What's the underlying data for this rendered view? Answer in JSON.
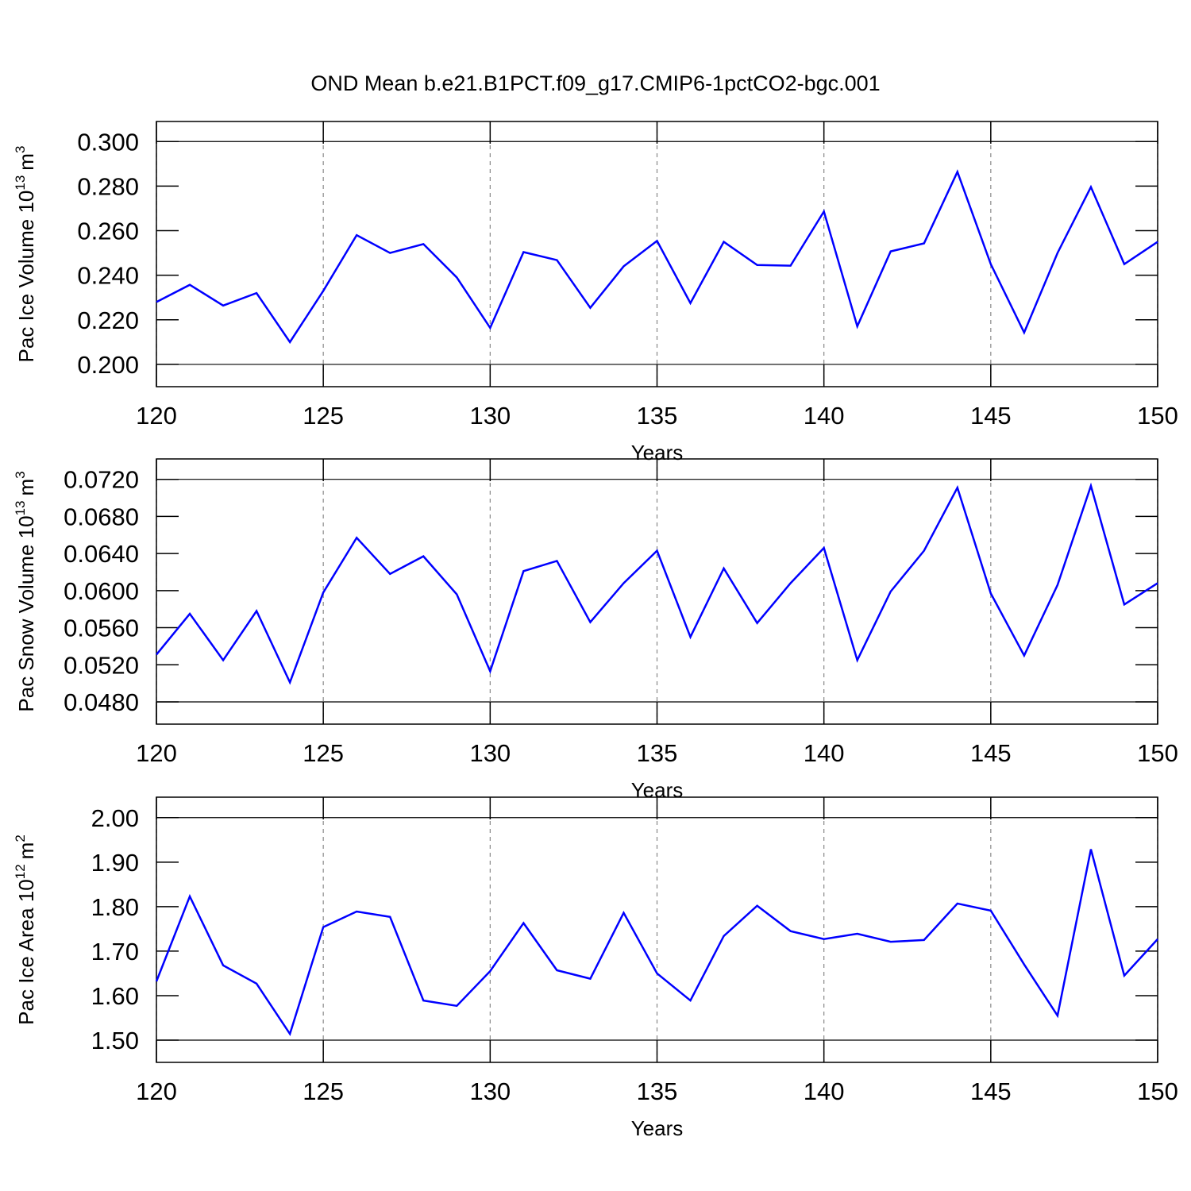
{
  "title": "OND Mean b.e21.B1PCT.f09_g17.CMIP6-1pctCO2-bgc.001",
  "chart_data": [
    {
      "type": "line",
      "xlabel": "Years",
      "ylabel": {
        "base": "Pac Ice Volume 10",
        "exp": "13",
        "unit": "m",
        "unit_exp": "3"
      },
      "x": [
        120,
        121,
        122,
        123,
        124,
        125,
        126,
        127,
        128,
        129,
        130,
        131,
        132,
        133,
        134,
        135,
        136,
        137,
        138,
        139,
        140,
        141,
        142,
        143,
        144,
        145,
        146,
        147,
        148,
        149,
        150
      ],
      "series": [
        {
          "color": "#0000ff",
          "values": [
            0.228,
            0.2357,
            0.2264,
            0.232,
            0.21,
            0.233,
            0.258,
            0.25,
            0.254,
            0.239,
            0.2164,
            0.2504,
            0.2468,
            0.2254,
            0.244,
            0.2554,
            0.2275,
            0.255,
            0.2446,
            0.2443,
            0.2686,
            0.2171,
            0.2507,
            0.2543,
            0.2864,
            0.245,
            0.2143,
            0.25,
            0.2796,
            0.245,
            0.255
          ]
        }
      ],
      "xlim": [
        120,
        150
      ],
      "xticks": [
        120,
        125,
        130,
        135,
        140,
        145,
        150
      ],
      "ylim": [
        0.19,
        0.309
      ],
      "yticks": [
        {
          "value": 0.2,
          "label": "0.200"
        },
        {
          "value": 0.22,
          "label": "0.220"
        },
        {
          "value": 0.24,
          "label": "0.240"
        },
        {
          "value": 0.26,
          "label": "0.260"
        },
        {
          "value": 0.28,
          "label": "0.280"
        },
        {
          "value": 0.3,
          "label": "0.300"
        }
      ],
      "xgrid": "dashed"
    },
    {
      "type": "line",
      "xlabel": "Years",
      "ylabel": {
        "base": "Pac Snow Volume 10",
        "exp": "13",
        "unit": "m",
        "unit_exp": "3"
      },
      "x": [
        120,
        121,
        122,
        123,
        124,
        125,
        126,
        127,
        128,
        129,
        130,
        131,
        132,
        133,
        134,
        135,
        136,
        137,
        138,
        139,
        140,
        141,
        142,
        143,
        144,
        145,
        146,
        147,
        148,
        149,
        150
      ],
      "series": [
        {
          "color": "#0000ff",
          "values": [
            0.0531,
            0.0575,
            0.0525,
            0.0578,
            0.0501,
            0.0598,
            0.0657,
            0.0618,
            0.0637,
            0.0596,
            0.0513,
            0.0621,
            0.0632,
            0.0566,
            0.0608,
            0.0643,
            0.055,
            0.0624,
            0.0565,
            0.0608,
            0.0646,
            0.0525,
            0.0599,
            0.0643,
            0.0711,
            0.0597,
            0.053,
            0.0606,
            0.0713,
            0.0585,
            0.0608
          ]
        }
      ],
      "xlim": [
        120,
        150
      ],
      "xticks": [
        120,
        125,
        130,
        135,
        140,
        145,
        150
      ],
      "ylim": [
        0.0456,
        0.0742
      ],
      "yticks": [
        {
          "value": 0.048,
          "label": "0.0480"
        },
        {
          "value": 0.052,
          "label": "0.0520"
        },
        {
          "value": 0.056,
          "label": "0.0560"
        },
        {
          "value": 0.06,
          "label": "0.0600"
        },
        {
          "value": 0.064,
          "label": "0.0640"
        },
        {
          "value": 0.068,
          "label": "0.0680"
        },
        {
          "value": 0.072,
          "label": "0.0720"
        }
      ],
      "xgrid": "dashed"
    },
    {
      "type": "line",
      "xlabel": "Years",
      "ylabel": {
        "base": "Pac Ice Area 10",
        "exp": "12",
        "unit": "m",
        "unit_exp": "2"
      },
      "x": [
        120,
        121,
        122,
        123,
        124,
        125,
        126,
        127,
        128,
        129,
        130,
        131,
        132,
        133,
        134,
        135,
        136,
        137,
        138,
        139,
        140,
        141,
        142,
        143,
        144,
        145,
        146,
        147,
        148,
        149,
        150
      ],
      "series": [
        {
          "color": "#0000ff",
          "values": [
            1.632,
            1.823,
            1.668,
            1.627,
            1.514,
            1.754,
            1.789,
            1.777,
            1.589,
            1.577,
            1.655,
            1.763,
            1.657,
            1.638,
            1.786,
            1.65,
            1.589,
            1.734,
            1.802,
            1.745,
            1.727,
            1.739,
            1.721,
            1.725,
            1.807,
            1.791,
            1.67,
            1.555,
            1.929,
            1.645,
            1.727
          ]
        }
      ],
      "xlim": [
        120,
        150
      ],
      "xticks": [
        120,
        125,
        130,
        135,
        140,
        145,
        150
      ],
      "ylim": [
        1.45,
        2.046
      ],
      "yticks": [
        {
          "value": 1.5,
          "label": "1.50"
        },
        {
          "value": 1.6,
          "label": "1.60"
        },
        {
          "value": 1.7,
          "label": "1.70"
        },
        {
          "value": 1.8,
          "label": "1.80"
        },
        {
          "value": 1.9,
          "label": "1.90"
        },
        {
          "value": 2.0,
          "label": "2.00"
        }
      ],
      "xgrid": "dashed"
    }
  ]
}
